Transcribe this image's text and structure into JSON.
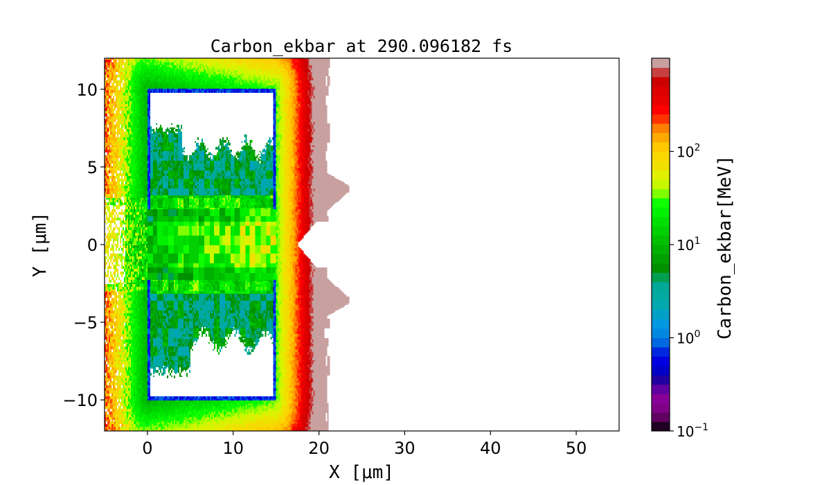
{
  "chart_data": {
    "type": "heatmap",
    "title": "Carbon_ekbar at 290.096182 fs",
    "xlabel": "X [μm]",
    "ylabel": "Y [μm]",
    "xlim": [
      -5,
      55
    ],
    "ylim": [
      -12,
      12
    ],
    "xticks": [
      "0",
      "10",
      "20",
      "30",
      "40",
      "50"
    ],
    "xtick_values": [
      0,
      10,
      20,
      30,
      40,
      50
    ],
    "yticks": [
      "−10",
      "−5",
      "0",
      "5",
      "10"
    ],
    "ytick_values": [
      -10,
      -5,
      0,
      5,
      10
    ],
    "colorbar": {
      "label": "Carbon_ekbar[MeV]",
      "scale": "log",
      "range": [
        0.1,
        1000
      ],
      "ticks": [
        {
          "base": "10",
          "exp": "−1",
          "value": 0.1
        },
        {
          "base": "10",
          "exp": "0",
          "value": 1
        },
        {
          "base": "10",
          "exp": "1",
          "value": 10
        },
        {
          "base": "10",
          "exp": "2",
          "value": 100
        }
      ],
      "levels_per_decade": 10,
      "colors": [
        "#200020",
        "#600060",
        "#800088",
        "#880098",
        "#6000a0",
        "#2000a0",
        "#0000c8",
        "#0000e0",
        "#0028e0",
        "#0068e0",
        "#0088e0",
        "#0098e0",
        "#00a0c8",
        "#00a8b0",
        "#00aaa0",
        "#00a898",
        "#00a050",
        "#009000",
        "#00a000",
        "#00b000",
        "#00c000",
        "#00d000",
        "#00e000",
        "#00f000",
        "#10ff00",
        "#80ff00",
        "#c8f800",
        "#e0f000",
        "#f0e000",
        "#f8d800",
        "#ffc800",
        "#ffaa00",
        "#ff8000",
        "#ff3300",
        "#ff0000",
        "#e60000",
        "#dd0000",
        "#cc0000",
        "#c84040",
        "#c8a0a0"
      ]
    },
    "features": {
      "hollow_boxes": [
        {
          "x": [
            0,
            15
          ],
          "y": [
            2.5,
            10
          ]
        },
        {
          "x": [
            0,
            15
          ],
          "y": [
            -10,
            -2.5
          ]
        }
      ],
      "plasma_extent_x": [
        -5,
        23.5
      ]
    }
  }
}
